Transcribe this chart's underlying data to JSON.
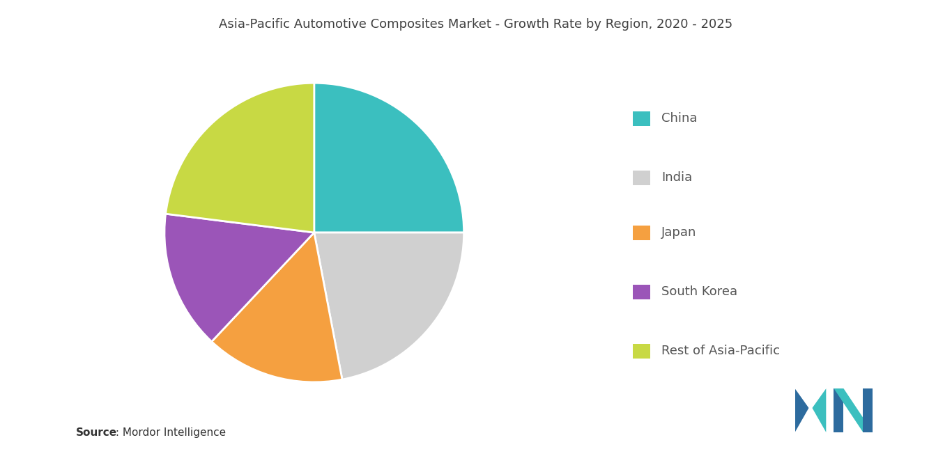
{
  "title": "Asia-Pacific Automotive Composites Market - Growth Rate by Region, 2020 - 2025",
  "labels": [
    "China",
    "India",
    "Japan",
    "South Korea",
    "Rest of Asia-Pacific"
  ],
  "sizes": [
    25,
    22,
    15,
    15,
    23
  ],
  "colors": [
    "#3bbfbf",
    "#d0d0d0",
    "#f5a040",
    "#9b55b8",
    "#c8d944"
  ],
  "source_bold": "Source",
  "source_rest": " : Mordor Intelligence",
  "background_color": "#ffffff",
  "title_fontsize": 13,
  "legend_fontsize": 13,
  "source_fontsize": 11,
  "startangle": 90,
  "legend_text_color": "#555555",
  "title_color": "#404040"
}
